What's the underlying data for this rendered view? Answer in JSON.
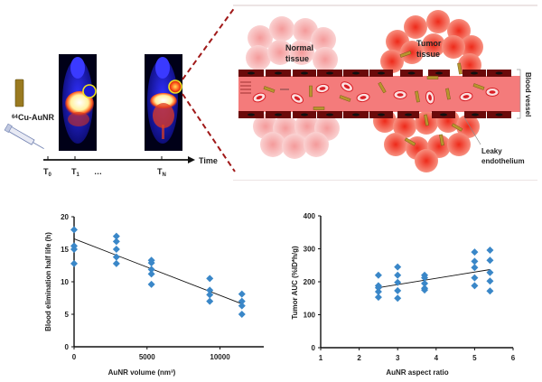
{
  "top_left": {
    "probe_label_sup": "64",
    "probe_label": "Cu-AuNR",
    "time_label": "Time",
    "time_points": [
      {
        "main": "T",
        "sub": "0"
      },
      {
        "main": "T",
        "sub": "1"
      },
      {
        "main": "…",
        "sub": ""
      },
      {
        "main": "T",
        "sub": "N"
      }
    ]
  },
  "top_right": {
    "normal_tissue": [
      "Normal",
      "tissue"
    ],
    "tumor_tissue": [
      "Tumor",
      "tissue"
    ],
    "blood_vessel": "Blood vessel",
    "leaky": [
      "Leaky",
      "endothelium"
    ],
    "colors": {
      "vessel_wall": "#6b0a0a",
      "lumen": "#f27b7b",
      "normal_cell": "#f6b5b5",
      "tumor_cell": "#f04a3a",
      "rod": "#b8952e",
      "rbc": "#d81f26",
      "dash_line": "#a01818"
    }
  },
  "chart_data": [
    {
      "type": "scatter",
      "title": "",
      "xlabel": "AuNR volume (nm³)",
      "ylabel": "Blood elimination half life (h)",
      "xlim": [
        0,
        13000
      ],
      "ylim": [
        0,
        20
      ],
      "xticks": [
        0,
        5000,
        10000
      ],
      "yticks": [
        0,
        5,
        10,
        15,
        20
      ],
      "marker_color": "#3a87c8",
      "grid": false,
      "points": [
        {
          "x": 0,
          "y": 18
        },
        {
          "x": 0,
          "y": 15.5
        },
        {
          "x": 0,
          "y": 15
        },
        {
          "x": 0,
          "y": 12.8
        },
        {
          "x": 2900,
          "y": 17
        },
        {
          "x": 2900,
          "y": 16.2
        },
        {
          "x": 2900,
          "y": 15
        },
        {
          "x": 2900,
          "y": 13.8
        },
        {
          "x": 2900,
          "y": 12.8
        },
        {
          "x": 5300,
          "y": 13.3
        },
        {
          "x": 5300,
          "y": 12.9
        },
        {
          "x": 5300,
          "y": 11.9
        },
        {
          "x": 5300,
          "y": 11.2
        },
        {
          "x": 5300,
          "y": 9.6
        },
        {
          "x": 9300,
          "y": 10.5
        },
        {
          "x": 9300,
          "y": 8.7
        },
        {
          "x": 9300,
          "y": 8
        },
        {
          "x": 9300,
          "y": 7
        },
        {
          "x": 11500,
          "y": 8.1
        },
        {
          "x": 11500,
          "y": 7
        },
        {
          "x": 11500,
          "y": 6.3
        },
        {
          "x": 11500,
          "y": 5
        }
      ],
      "trendline": [
        {
          "x": 0,
          "y": 16.6
        },
        {
          "x": 11500,
          "y": 6.6
        }
      ]
    },
    {
      "type": "scatter",
      "title": "",
      "xlabel": "AuNR aspect ratio",
      "ylabel": "Tumor AUC (%ID*h/g)",
      "xlim": [
        1,
        6
      ],
      "ylim": [
        0,
        400
      ],
      "xticks": [
        1,
        2,
        3,
        4,
        5,
        6
      ],
      "yticks": [
        0,
        100,
        200,
        300,
        400
      ],
      "marker_color": "#3a87c8",
      "grid": false,
      "points": [
        {
          "x": 2.5,
          "y": 220
        },
        {
          "x": 2.5,
          "y": 188
        },
        {
          "x": 2.5,
          "y": 182
        },
        {
          "x": 2.5,
          "y": 170
        },
        {
          "x": 2.5,
          "y": 153
        },
        {
          "x": 3,
          "y": 245
        },
        {
          "x": 3,
          "y": 220
        },
        {
          "x": 3,
          "y": 198
        },
        {
          "x": 3,
          "y": 173
        },
        {
          "x": 3,
          "y": 150
        },
        {
          "x": 3.7,
          "y": 220
        },
        {
          "x": 3.7,
          "y": 212
        },
        {
          "x": 3.7,
          "y": 195
        },
        {
          "x": 3.7,
          "y": 180
        },
        {
          "x": 3.7,
          "y": 175
        },
        {
          "x": 5,
          "y": 290
        },
        {
          "x": 5,
          "y": 262
        },
        {
          "x": 5,
          "y": 243
        },
        {
          "x": 5,
          "y": 212
        },
        {
          "x": 5,
          "y": 188
        },
        {
          "x": 5.4,
          "y": 296
        },
        {
          "x": 5.4,
          "y": 265
        },
        {
          "x": 5.4,
          "y": 228
        },
        {
          "x": 5.4,
          "y": 202
        },
        {
          "x": 5.4,
          "y": 172
        }
      ],
      "trendline": [
        {
          "x": 2.5,
          "y": 182
        },
        {
          "x": 5.4,
          "y": 237
        }
      ]
    }
  ]
}
